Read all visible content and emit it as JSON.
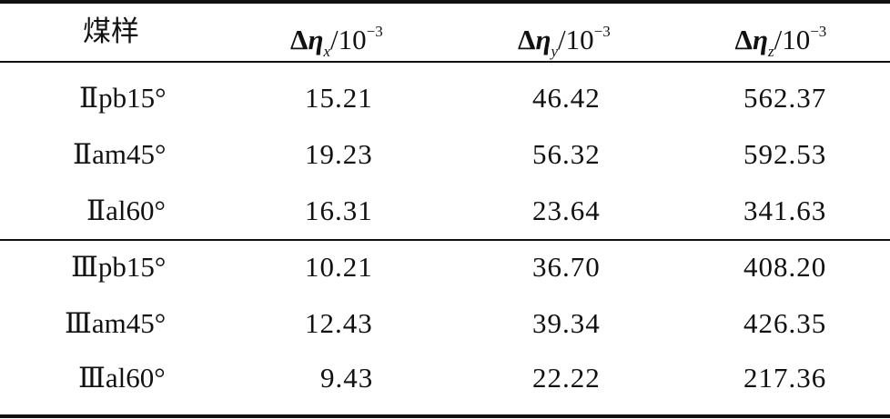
{
  "table": {
    "header": [
      "煤样",
      {
        "delta": "Δ",
        "symbol": "η",
        "sub": "x",
        "unit": "/10",
        "sup": "−3"
      },
      {
        "delta": "Δ",
        "symbol": "η",
        "sub": "y",
        "unit": "/10",
        "sup": "−3"
      },
      {
        "delta": "Δ",
        "symbol": "η",
        "sub": "z",
        "unit": "/10",
        "sup": "−3"
      }
    ],
    "rows": [
      [
        "Ⅱpb15°",
        "15.21",
        "46.42",
        "562.37"
      ],
      [
        "Ⅱam45°",
        "19.23",
        "56.32",
        "592.53"
      ],
      [
        "Ⅱal60°",
        "16.31",
        "23.64",
        "341.63"
      ],
      [
        "Ⅲpb15°",
        "10.21",
        "36.70",
        "408.20"
      ],
      [
        "Ⅲam45°",
        "12.43",
        "39.34",
        "426.35"
      ],
      [
        "Ⅲal60°",
        "9.43",
        "22.22",
        "217.36"
      ]
    ]
  }
}
